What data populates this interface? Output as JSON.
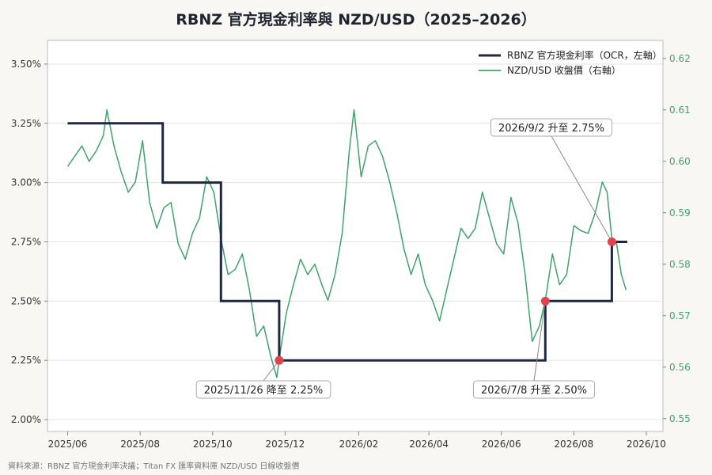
{
  "chart_data": {
    "type": "line",
    "title": "RBNZ 官方現金利率與 NZD/USD（2025–2026）",
    "source": "資料來源：RBNZ 官方現金利率決議；Titan FX 匯率資料庫 NZD/USD 日線收盤價",
    "x_ticks": [
      "2025/06",
      "2025/08",
      "2025/10",
      "2025/12",
      "2026/02",
      "2026/04",
      "2026/06",
      "2026/08",
      "2026/10"
    ],
    "y_left": {
      "ticks": [
        "2.00%",
        "2.25%",
        "2.50%",
        "2.75%",
        "3.00%",
        "3.25%",
        "3.50%"
      ],
      "range": [
        1.95,
        3.6
      ]
    },
    "y_right": {
      "ticks": [
        "0.55",
        "0.56",
        "0.57",
        "0.58",
        "0.59",
        "0.60",
        "0.61",
        "0.62"
      ],
      "range": [
        0.5475,
        0.6235
      ]
    },
    "x_range": [
      "2025-05-15",
      "2026-10-15"
    ],
    "legend": {
      "placement": "top-right"
    },
    "grid": "horizontal",
    "colors": {
      "ocr": "#1f2840",
      "nzd": "#3fa36b",
      "marker": "#e0434b"
    },
    "series": [
      {
        "name": "RBNZ 官方現金利率（OCR，左軸）",
        "axis": "left",
        "style": "step",
        "points": [
          [
            "2025-06-01",
            3.25
          ],
          [
            "2025-08-20",
            3.25
          ],
          [
            "2025-08-20",
            3.0
          ],
          [
            "2025-10-08",
            3.0
          ],
          [
            "2025-10-08",
            2.5
          ],
          [
            "2025-11-26",
            2.5
          ],
          [
            "2025-11-26",
            2.25
          ],
          [
            "2026-07-08",
            2.25
          ],
          [
            "2026-07-08",
            2.5
          ],
          [
            "2026-09-02",
            2.5
          ],
          [
            "2026-09-02",
            2.75
          ],
          [
            "2026-09-15",
            2.75
          ]
        ]
      },
      {
        "name": "NZD/USD 收盤價（右軸）",
        "axis": "right",
        "style": "line",
        "points": [
          [
            "2025-06-01",
            0.599
          ],
          [
            "2025-06-07",
            0.601
          ],
          [
            "2025-06-13",
            0.603
          ],
          [
            "2025-06-19",
            0.6
          ],
          [
            "2025-06-25",
            0.602
          ],
          [
            "2025-07-01",
            0.605
          ],
          [
            "2025-07-04",
            0.61
          ],
          [
            "2025-07-10",
            0.603
          ],
          [
            "2025-07-16",
            0.598
          ],
          [
            "2025-07-22",
            0.594
          ],
          [
            "2025-07-28",
            0.596
          ],
          [
            "2025-08-03",
            0.604
          ],
          [
            "2025-08-09",
            0.592
          ],
          [
            "2025-08-15",
            0.587
          ],
          [
            "2025-08-21",
            0.591
          ],
          [
            "2025-08-27",
            0.592
          ],
          [
            "2025-09-02",
            0.584
          ],
          [
            "2025-09-08",
            0.581
          ],
          [
            "2025-09-14",
            0.586
          ],
          [
            "2025-09-20",
            0.589
          ],
          [
            "2025-09-26",
            0.597
          ],
          [
            "2025-10-02",
            0.594
          ],
          [
            "2025-10-08",
            0.585
          ],
          [
            "2025-10-14",
            0.578
          ],
          [
            "2025-10-20",
            0.579
          ],
          [
            "2025-10-26",
            0.582
          ],
          [
            "2025-11-01",
            0.575
          ],
          [
            "2025-11-07",
            0.566
          ],
          [
            "2025-11-13",
            0.568
          ],
          [
            "2025-11-19",
            0.562
          ],
          [
            "2025-11-24",
            0.558
          ],
          [
            "2025-11-26",
            0.5615
          ],
          [
            "2025-12-02",
            0.5705
          ],
          [
            "2025-12-08",
            0.576
          ],
          [
            "2025-12-14",
            0.581
          ],
          [
            "2025-12-20",
            0.578
          ],
          [
            "2025-12-26",
            0.58
          ],
          [
            "2026-01-01",
            0.576
          ],
          [
            "2026-01-06",
            0.573
          ],
          [
            "2026-01-12",
            0.578
          ],
          [
            "2026-01-18",
            0.586
          ],
          [
            "2026-01-24",
            0.602
          ],
          [
            "2026-01-28",
            0.61
          ],
          [
            "2026-02-03",
            0.597
          ],
          [
            "2026-02-09",
            0.603
          ],
          [
            "2026-02-15",
            0.604
          ],
          [
            "2026-02-21",
            0.601
          ],
          [
            "2026-02-27",
            0.596
          ],
          [
            "2026-03-05",
            0.59
          ],
          [
            "2026-03-11",
            0.583
          ],
          [
            "2026-03-17",
            0.578
          ],
          [
            "2026-03-23",
            0.582
          ],
          [
            "2026-03-29",
            0.576
          ],
          [
            "2026-04-04",
            0.573
          ],
          [
            "2026-04-10",
            0.569
          ],
          [
            "2026-04-16",
            0.575
          ],
          [
            "2026-04-22",
            0.581
          ],
          [
            "2026-04-28",
            0.587
          ],
          [
            "2026-05-04",
            0.585
          ],
          [
            "2026-05-10",
            0.587
          ],
          [
            "2026-05-16",
            0.594
          ],
          [
            "2026-05-22",
            0.589
          ],
          [
            "2026-05-28",
            0.584
          ],
          [
            "2026-06-03",
            0.582
          ],
          [
            "2026-06-09",
            0.593
          ],
          [
            "2026-06-15",
            0.588
          ],
          [
            "2026-06-21",
            0.578
          ],
          [
            "2026-06-27",
            0.565
          ],
          [
            "2026-07-03",
            0.568
          ],
          [
            "2026-07-08",
            0.573
          ],
          [
            "2026-07-14",
            0.582
          ],
          [
            "2026-07-20",
            0.576
          ],
          [
            "2026-07-26",
            0.578
          ],
          [
            "2026-08-01",
            0.5875
          ],
          [
            "2026-08-07",
            0.5865
          ],
          [
            "2026-08-13",
            0.586
          ],
          [
            "2026-08-19",
            0.59
          ],
          [
            "2026-08-25",
            0.596
          ],
          [
            "2026-08-29",
            0.594
          ],
          [
            "2026-09-02",
            0.585
          ],
          [
            "2026-09-06",
            0.584
          ],
          [
            "2026-09-10",
            0.578
          ],
          [
            "2026-09-14",
            0.575
          ]
        ]
      }
    ],
    "annotations": [
      {
        "date": "2025-11-26",
        "rate": 2.25,
        "text": "2025/11/26 降至 2.25%"
      },
      {
        "date": "2026-07-08",
        "rate": 2.5,
        "text": "2026/7/8 升至 2.50%"
      },
      {
        "date": "2026-09-02",
        "rate": 2.75,
        "text": "2026/9/2 升至 2.75%"
      }
    ]
  }
}
